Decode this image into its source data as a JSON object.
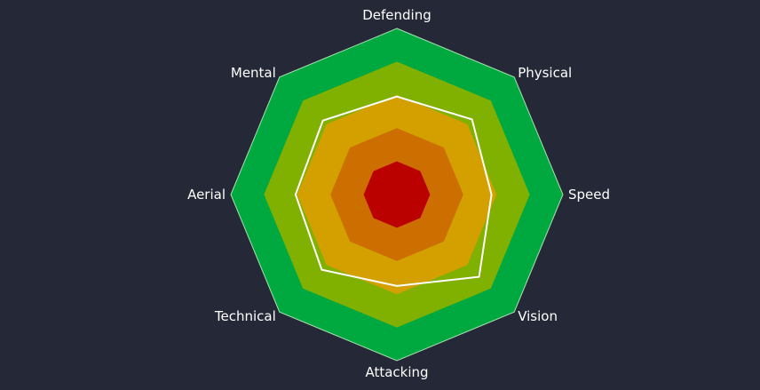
{
  "chart_data": {
    "type": "radar",
    "title": "",
    "axes": [
      "Defending",
      "Physical",
      "Speed",
      "Vision",
      "Attacking",
      "Technical",
      "Aerial",
      "Mental"
    ],
    "range": [
      0,
      100
    ],
    "bands": [
      {
        "from": 0,
        "to": 20,
        "color": "#bb0000"
      },
      {
        "from": 20,
        "to": 40,
        "color": "#cc6e00"
      },
      {
        "from": 40,
        "to": 60,
        "color": "#d4a000"
      },
      {
        "from": 60,
        "to": 80,
        "color": "#80b000"
      },
      {
        "from": 80,
        "to": 100,
        "color": "#00a940"
      }
    ],
    "series": [
      {
        "values": [
          59,
          64,
          57,
          70,
          55,
          64,
          61,
          63
        ],
        "color": "#ffffff"
      }
    ],
    "outline_color": "#a8e0b0",
    "background": "#252836"
  }
}
